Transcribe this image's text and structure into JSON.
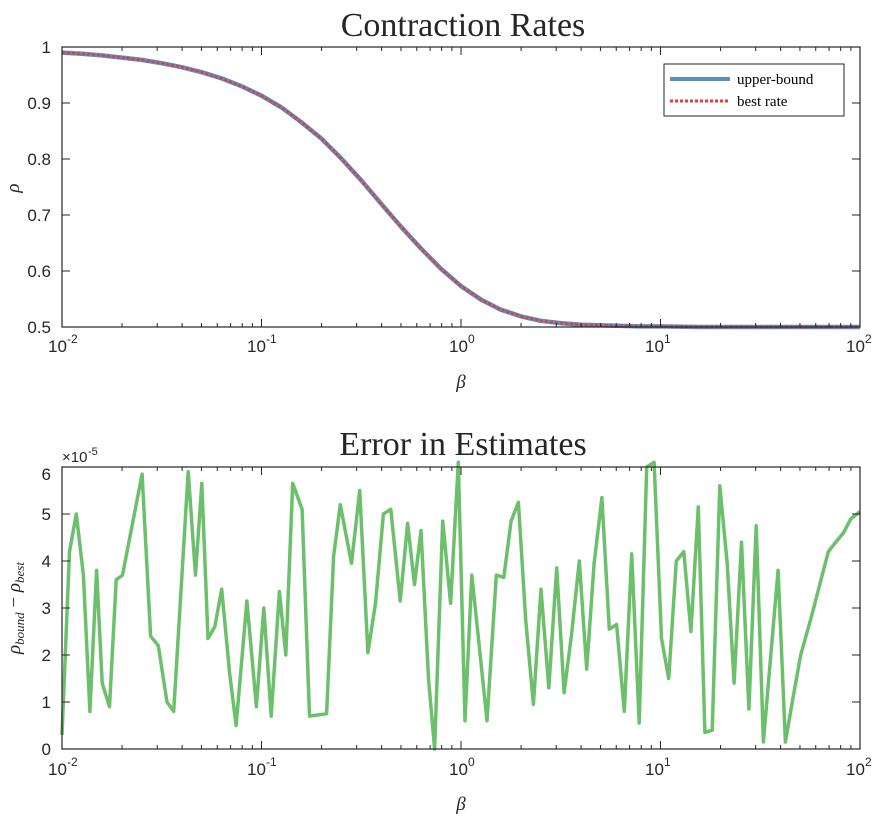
{
  "colors": {
    "upper_bound": "#5a8fc0",
    "best_rate": "#e8393b",
    "error": "#6cc06c",
    "axis": "#262626"
  },
  "chart_data": [
    {
      "type": "line",
      "title": "Contraction Rates",
      "xlabel": "β",
      "ylabel": "ρ",
      "xscale": "log",
      "xlim": [
        0.01,
        100
      ],
      "ylim": [
        0.5,
        1
      ],
      "x_ticks": [
        {
          "base": "10",
          "exp": "-2"
        },
        {
          "base": "10",
          "exp": "-1"
        },
        {
          "base": "10",
          "exp": "0"
        },
        {
          "base": "10",
          "exp": "1"
        },
        {
          "base": "10",
          "exp": "2"
        }
      ],
      "y_ticks": [
        "0.5",
        "0.6",
        "0.7",
        "0.8",
        "0.9",
        "1"
      ],
      "grid": false,
      "legend": "top-right",
      "series": [
        {
          "name": "upper-bound",
          "style": "solid",
          "x": [
            0.01,
            0.0126,
            0.0158,
            0.02,
            0.0251,
            0.0316,
            0.0398,
            0.0501,
            0.0631,
            0.0794,
            0.1,
            0.126,
            0.158,
            0.2,
            0.251,
            0.316,
            0.398,
            0.501,
            0.631,
            0.794,
            1,
            1.26,
            1.58,
            2,
            2.51,
            3.16,
            3.98,
            5.01,
            6.31,
            7.94,
            10,
            15.8,
            25.1,
            39.8,
            63.1,
            100
          ],
          "y": [
            0.99,
            0.988,
            0.985,
            0.981,
            0.977,
            0.971,
            0.964,
            0.955,
            0.944,
            0.93,
            0.913,
            0.892,
            0.866,
            0.836,
            0.801,
            0.762,
            0.72,
            0.679,
            0.64,
            0.604,
            0.573,
            0.549,
            0.531,
            0.519,
            0.511,
            0.507,
            0.504,
            0.503,
            0.502,
            0.501,
            0.501,
            0.5,
            0.5,
            0.5,
            0.5,
            0.5
          ]
        },
        {
          "name": "best rate",
          "style": "dotted",
          "x": [
            0.01,
            0.0126,
            0.0158,
            0.02,
            0.0251,
            0.0316,
            0.0398,
            0.0501,
            0.0631,
            0.0794,
            0.1,
            0.126,
            0.158,
            0.2,
            0.251,
            0.316,
            0.398,
            0.501,
            0.631,
            0.794,
            1,
            1.26,
            1.58,
            2,
            2.51,
            3.16,
            3.98,
            5.01,
            6.31,
            7.94,
            10,
            15.8,
            25.1,
            39.8,
            63.1,
            100
          ],
          "y": [
            0.99,
            0.988,
            0.985,
            0.981,
            0.977,
            0.971,
            0.964,
            0.955,
            0.944,
            0.93,
            0.913,
            0.892,
            0.866,
            0.836,
            0.801,
            0.762,
            0.72,
            0.679,
            0.64,
            0.604,
            0.573,
            0.549,
            0.531,
            0.519,
            0.511,
            0.507,
            0.504,
            0.503,
            0.502,
            0.501,
            0.501,
            0.5,
            0.5,
            0.5,
            0.5,
            0.5
          ]
        }
      ]
    },
    {
      "type": "line",
      "title": "Error in Estimates",
      "xlabel": "β",
      "ylabel_main": "ρ",
      "ylabel_sub1": "bound",
      "ylabel_minus": " − ",
      "ylabel_sub2": "best",
      "xscale": "log",
      "xlim": [
        0.01,
        100
      ],
      "ylim": [
        0,
        6
      ],
      "y_multiplier": {
        "base": "×10",
        "exp": "-5"
      },
      "x_ticks": [
        {
          "base": "10",
          "exp": "-2"
        },
        {
          "base": "10",
          "exp": "-1"
        },
        {
          "base": "10",
          "exp": "0"
        },
        {
          "base": "10",
          "exp": "1"
        },
        {
          "base": "10",
          "exp": "2"
        }
      ],
      "y_ticks": [
        "0",
        "1",
        "2",
        "3",
        "4",
        "5",
        "6"
      ],
      "grid": false,
      "series": [
        {
          "name": "",
          "x": [
            0.01,
            0.0109,
            0.0118,
            0.0128,
            0.0138,
            0.0149,
            0.0159,
            0.0173,
            0.0187,
            0.0201,
            0.0252,
            0.0278,
            0.0304,
            0.0336,
            0.0363,
            0.0429,
            0.0467,
            0.0502,
            0.0539,
            0.0583,
            0.0632,
            0.0693,
            0.0746,
            0.0845,
            0.0943,
            0.1027,
            0.1119,
            0.1229,
            0.1324,
            0.1434,
            0.1598,
            0.1741,
            0.2119,
            0.2297,
            0.2483,
            0.2825,
            0.3107,
            0.3416,
            0.3727,
            0.4085,
            0.4447,
            0.4958,
            0.5402,
            0.5849,
            0.6299,
            0.6871,
            0.7372,
            0.8092,
            0.8872,
            0.9689,
            1.0471,
            1.1325,
            1.2344,
            1.3494,
            1.5034,
            1.6388,
            1.7827,
            1.9388,
            2.1091,
            2.3064,
            2.5169,
            2.7535,
            3.0168,
            3.2876,
            3.5838,
            3.9192,
            4.2649,
            4.6491,
            5.0837,
            5.5349,
            6.0279,
            6.5819,
            7.1734,
            7.8201,
            8.5281,
            9.2844,
            10.1166,
            10.9973,
            11.9937,
            13.0786,
            14.1981,
            15.4651,
            16.6959,
            18.1634,
            19.8294,
            21.5901,
            23.3799,
            25.4634,
            27.7305,
            30.1798,
            32.7933,
            35.7032,
            38.8418,
            42.2563,
            45.9773,
            50.4163,
            57.3769,
            63.3048,
            69.4052,
            75.5654,
            82.6214,
            90.0196,
            100
          ],
          "y": [
            0.3,
            4.2,
            5.0,
            3.7,
            0.8,
            3.8,
            1.4,
            0.9,
            3.6,
            3.7,
            5.85,
            2.4,
            2.2,
            1.0,
            0.8,
            5.9,
            3.7,
            5.65,
            2.35,
            2.6,
            3.4,
            1.6,
            0.5,
            3.15,
            0.9,
            3.0,
            0.7,
            3.35,
            2.0,
            5.65,
            5.1,
            0.7,
            0.75,
            4.1,
            5.2,
            3.95,
            5.5,
            2.05,
            3.1,
            5.0,
            5.1,
            3.15,
            4.8,
            3.5,
            4.65,
            1.5,
            0.0,
            4.85,
            3.1,
            6.1,
            0.6,
            3.7,
            2.2,
            0.6,
            3.7,
            3.65,
            4.85,
            5.25,
            2.75,
            0.95,
            3.4,
            1.3,
            3.85,
            1.2,
            2.45,
            4.0,
            1.7,
            3.95,
            5.35,
            2.55,
            2.65,
            0.8,
            4.15,
            0.55,
            6.0,
            6.1,
            2.35,
            1.5,
            4.0,
            4.2,
            2.5,
            5.15,
            0.35,
            0.4,
            5.6,
            3.95,
            1.4,
            4.4,
            0.85,
            4.75,
            0.15,
            2.0,
            3.8,
            0.15,
            1.05,
            2.0,
            2.85,
            3.55,
            4.2,
            4.4,
            4.6,
            4.9,
            5.05
          ]
        }
      ]
    }
  ]
}
